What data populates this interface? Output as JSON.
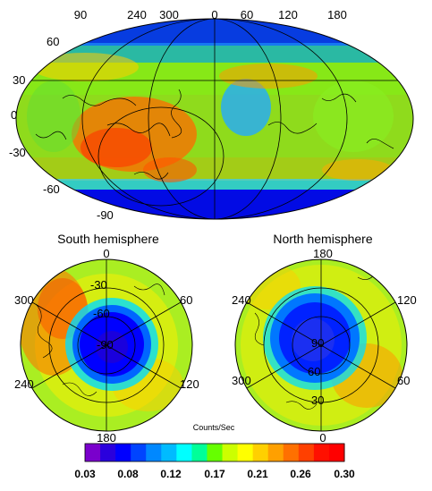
{
  "world_map": {
    "top_longitude_labels": [
      "90",
      "240",
      "300",
      "0",
      "60",
      "120",
      "180"
    ],
    "latitude_labels": [
      "60",
      "30",
      "0",
      "-30",
      "-60",
      "-90"
    ]
  },
  "south_hemisphere": {
    "title": "South hemisphere",
    "edge_labels": {
      "top": "0",
      "right": "60",
      "lower_right": "120",
      "bottom": "180",
      "lower_left": "240",
      "left": "300"
    },
    "inner_labels": [
      "-30",
      "-60",
      "-90"
    ]
  },
  "north_hemisphere": {
    "title": "North hemisphere",
    "edge_labels": {
      "top": "180",
      "right": "120",
      "lower_right": "60",
      "bottom": "0",
      "lower_left": "300",
      "left": "240"
    },
    "inner_labels": [
      "90",
      "60",
      "30"
    ]
  },
  "colorbar": {
    "unit_label": "Counts/Sec",
    "tick_labels": [
      "0.03",
      "0.08",
      "0.12",
      "0.17",
      "0.21",
      "0.26",
      "0.30"
    ],
    "colors": [
      "#7a00cc",
      "#2a00dd",
      "#0000ff",
      "#0044ff",
      "#0088ff",
      "#00bbff",
      "#00ffff",
      "#00ff99",
      "#66ff00",
      "#ccff00",
      "#ffff00",
      "#ffd000",
      "#ffa000",
      "#ff7000",
      "#ff4000",
      "#ff1000",
      "#ff0000"
    ]
  }
}
